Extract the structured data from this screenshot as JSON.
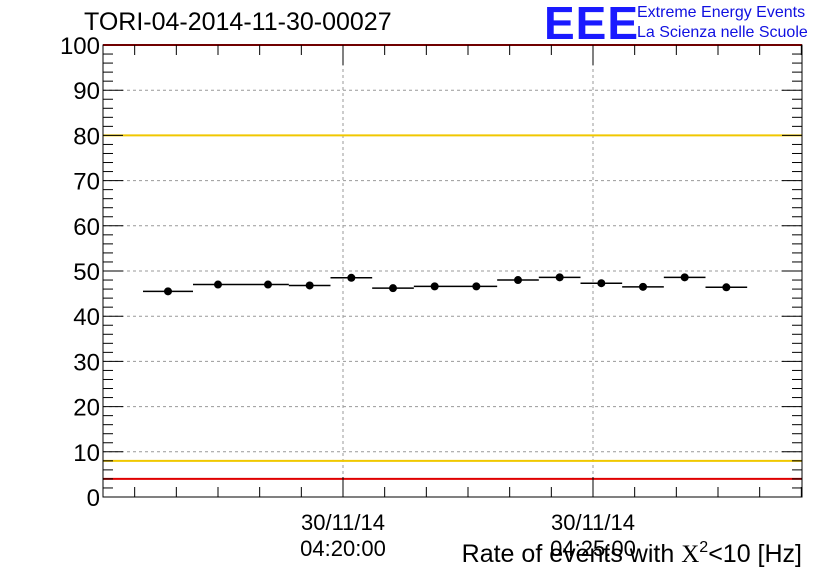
{
  "title": "TORI-04-2014-11-30-00027",
  "logo": {
    "mark": "EEE",
    "line1": "Extreme Energy Events",
    "line2": "La Scienza nelle Scuole"
  },
  "chart_data": {
    "type": "scatter",
    "title": "TORI-04-2014-11-30-00027",
    "ylim": [
      0,
      100
    ],
    "yticks": [
      "0",
      "10",
      "20",
      "30",
      "40",
      "50",
      "60",
      "70",
      "80",
      "90",
      "100"
    ],
    "xticks": [
      {
        "date": "30/11/14",
        "time": "04:20:00"
      },
      {
        "date": "30/11/14",
        "time": "04:25:00"
      }
    ],
    "xlabel": "Rate of events with χ²<10 [Hz]",
    "xlabel_parts": {
      "prefix": "Rate of events with ",
      "chi": "X",
      "sup": "2",
      "suffix": "<10 [Hz]"
    },
    "grid": true,
    "reference_lines": [
      {
        "y": 100,
        "color": "#e00000"
      },
      {
        "y": 80,
        "color": "#f0c800"
      },
      {
        "y": 8,
        "color": "#f0c800"
      },
      {
        "y": 4,
        "color": "#e00000"
      }
    ],
    "x": [
      "04:16:30",
      "04:17:30",
      "04:18:30",
      "04:19:20",
      "04:20:10",
      "04:21:00",
      "04:21:50",
      "04:22:40",
      "04:23:30",
      "04:24:20",
      "04:25:10",
      "04:26:00",
      "04:26:50",
      "04:27:40"
    ],
    "values": [
      45.5,
      47.0,
      47.0,
      46.8,
      48.5,
      46.2,
      46.6,
      46.6,
      48.0,
      48.6,
      47.3,
      46.5,
      48.6,
      46.4
    ]
  }
}
